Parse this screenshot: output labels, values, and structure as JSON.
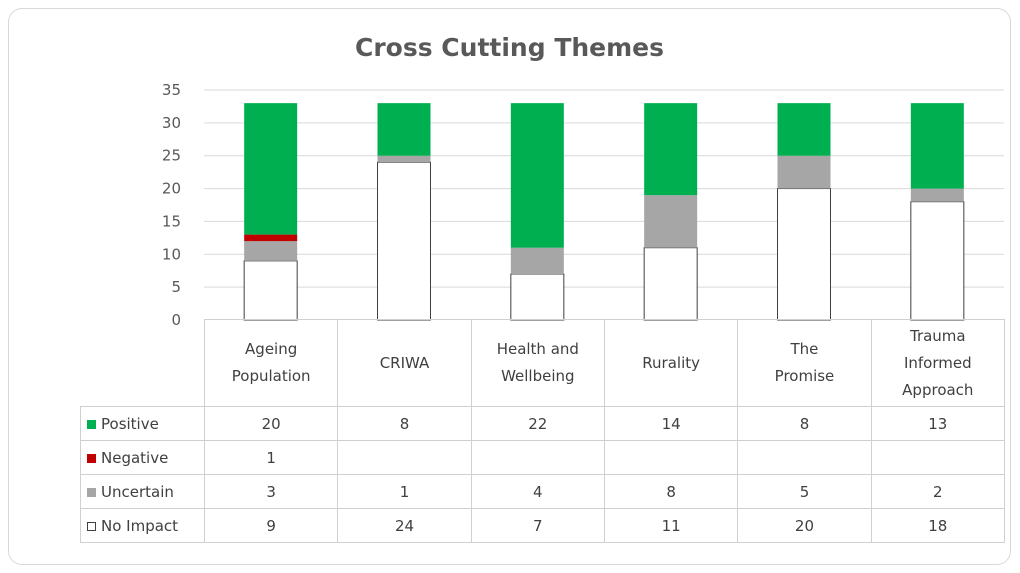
{
  "chart_data": {
    "type": "bar",
    "stacked": true,
    "title": "Cross Cutting Themes",
    "xlabel": "",
    "ylabel": "",
    "ylim": [
      0,
      35
    ],
    "yticks": [
      "0",
      "5",
      "10",
      "15",
      "20",
      "25",
      "30",
      "35"
    ],
    "grid": true,
    "legend_placement": "data-table",
    "categories": [
      [
        "Ageing",
        "Population"
      ],
      [
        "CRIWA"
      ],
      [
        "Health and",
        "Wellbeing"
      ],
      [
        "Rurality"
      ],
      [
        "The",
        "Promise"
      ],
      [
        "Trauma",
        "Informed",
        "Approach"
      ]
    ],
    "series": [
      {
        "name": "Positive",
        "color": "#00b050",
        "values": [
          20,
          8,
          22,
          14,
          8,
          13
        ]
      },
      {
        "name": "Negative",
        "color": "#c00000",
        "values": [
          1,
          null,
          null,
          null,
          null,
          null
        ]
      },
      {
        "name": "Uncertain",
        "color": "#a6a6a6",
        "values": [
          3,
          1,
          4,
          8,
          5,
          2
        ]
      },
      {
        "name": "No Impact",
        "color": "#ffffff",
        "values": [
          9,
          24,
          7,
          11,
          20,
          18
        ]
      }
    ],
    "stack_order": [
      "No Impact",
      "Uncertain",
      "Negative",
      "Positive"
    ]
  }
}
